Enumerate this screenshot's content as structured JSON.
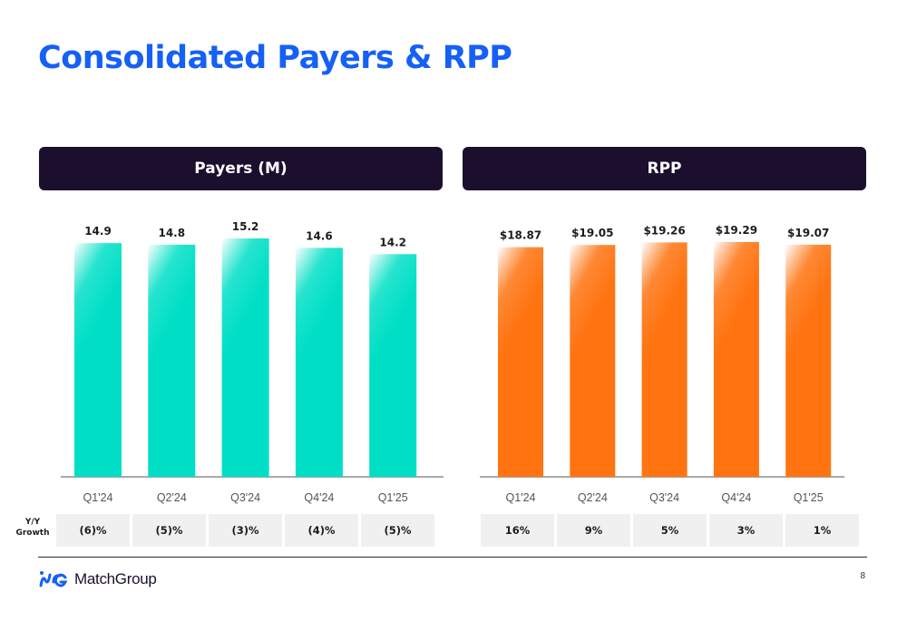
{
  "title": "Consolidated Payers & RPP",
  "growth_caption": "Y/Y Growth",
  "brand": {
    "logo_text": "MatchGroup",
    "colors": {
      "title": "#1560f5",
      "header": "#1c0f2e",
      "payers_bar": "#00dfc6",
      "rpp_bar": "#ff7310"
    }
  },
  "page_number": "8",
  "panels": [
    {
      "header": "Payers (M)",
      "growth": [
        "(6)%",
        "(5)%",
        "(3)%",
        "(4)%",
        "(5)%"
      ]
    },
    {
      "header": "RPP",
      "growth": [
        "16%",
        "9%",
        "5%",
        "3%",
        "1%"
      ]
    }
  ],
  "chart_data": [
    {
      "type": "bar",
      "title": "Payers (M)",
      "categories": [
        "Q1'24",
        "Q2'24",
        "Q3'24",
        "Q4'24",
        "Q1'25"
      ],
      "values": [
        14.9,
        14.8,
        15.2,
        14.6,
        14.2
      ],
      "labels": [
        "14.9",
        "14.8",
        "15.2",
        "14.6",
        "14.2"
      ],
      "ylim": [
        0,
        15.2
      ],
      "grid": false,
      "color": "#00dfc6"
    },
    {
      "type": "bar",
      "title": "RPP",
      "categories": [
        "Q1'24",
        "Q2'24",
        "Q3'24",
        "Q4'24",
        "Q1'25"
      ],
      "values": [
        18.87,
        19.05,
        19.26,
        19.29,
        19.07
      ],
      "labels": [
        "$18.87",
        "$19.05",
        "$19.26",
        "$19.29",
        "$19.07"
      ],
      "ylim": [
        0,
        19.29
      ],
      "grid": false,
      "color": "#ff7310"
    }
  ]
}
